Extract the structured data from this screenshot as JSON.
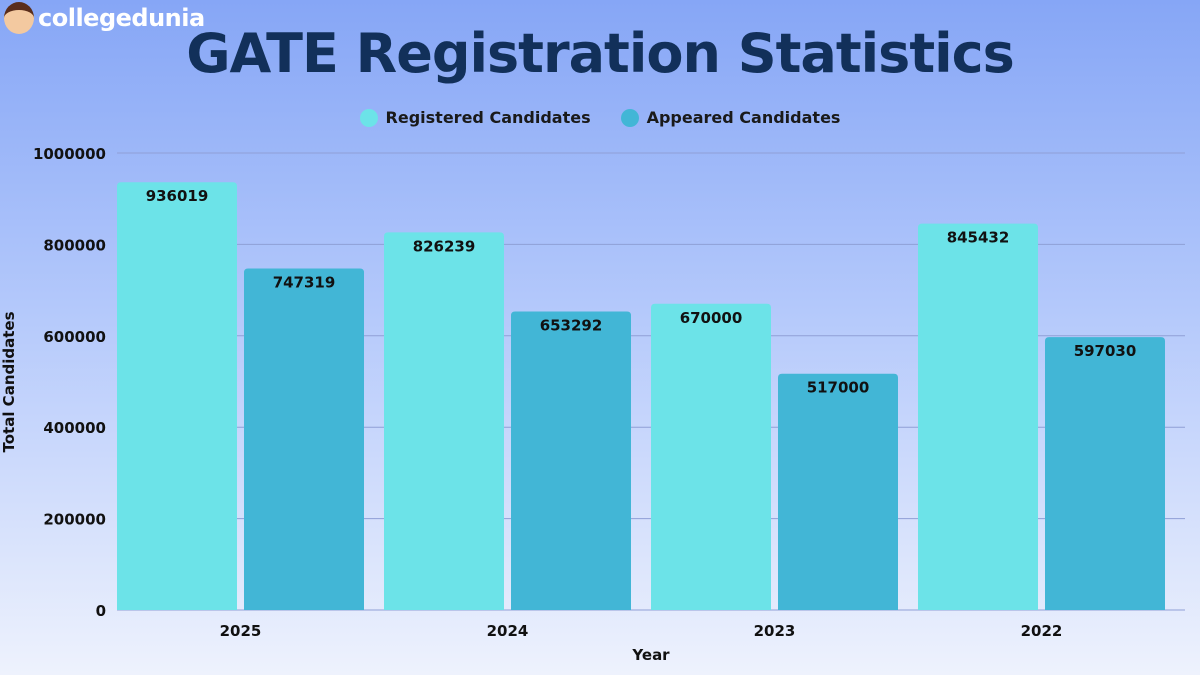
{
  "logo": {
    "text": "collegedunia"
  },
  "chart_data": {
    "type": "bar",
    "title": "GATE Registration Statistics",
    "xlabel": "Year",
    "ylabel": "Total Candidates",
    "categories": [
      "2025",
      "2024",
      "2023",
      "2022"
    ],
    "series": [
      {
        "name": "Registered Candidates",
        "color": "#6ce3e8",
        "values": [
          936019,
          826239,
          670000,
          845432
        ]
      },
      {
        "name": "Appeared Candidates",
        "color": "#42b6d6",
        "values": [
          747319,
          653292,
          517000,
          597030
        ]
      }
    ],
    "ylim": [
      0,
      1000000
    ],
    "yticks": [
      "0",
      "200000",
      "400000",
      "600000",
      "800000",
      "1000000"
    ],
    "grid": true,
    "legend": "top-center"
  }
}
